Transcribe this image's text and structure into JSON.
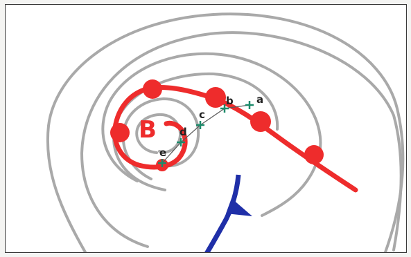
{
  "map": {
    "low_label": "B",
    "points": [
      {
        "label": "a"
      },
      {
        "label": "b"
      },
      {
        "label": "c"
      },
      {
        "label": "d"
      },
      {
        "label": "e"
      }
    ]
  },
  "colors": {
    "isobar": "#a9a9a9",
    "occluded_front": "#ee2c2c",
    "cold_front": "#1f2fa8",
    "marker": "#1c8a6a",
    "track_line": "#5a5a5a",
    "label_text": "#222222",
    "border": "#3a3a3a"
  },
  "icons": {
    "point_marker": "green-cross-marker-icon",
    "front_semicircle": "warm-front-semicircle-icon",
    "front_triangle": "cold-front-triangle-icon"
  }
}
